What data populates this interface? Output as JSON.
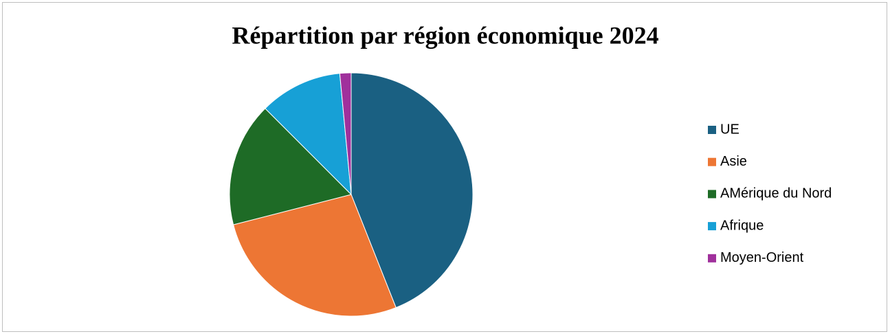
{
  "chart_data": {
    "type": "pie",
    "title": "Répartition par région économique 2024",
    "categories": [
      "UE",
      "Asie",
      "AMérique du Nord",
      "Afrique",
      "Moyen-Orient"
    ],
    "values": [
      44,
      27,
      16.5,
      11,
      1.5
    ],
    "colors": [
      "#1a6082",
      "#ed7634",
      "#1e6b26",
      "#17a0d6",
      "#a0309c"
    ],
    "legend": "right"
  }
}
